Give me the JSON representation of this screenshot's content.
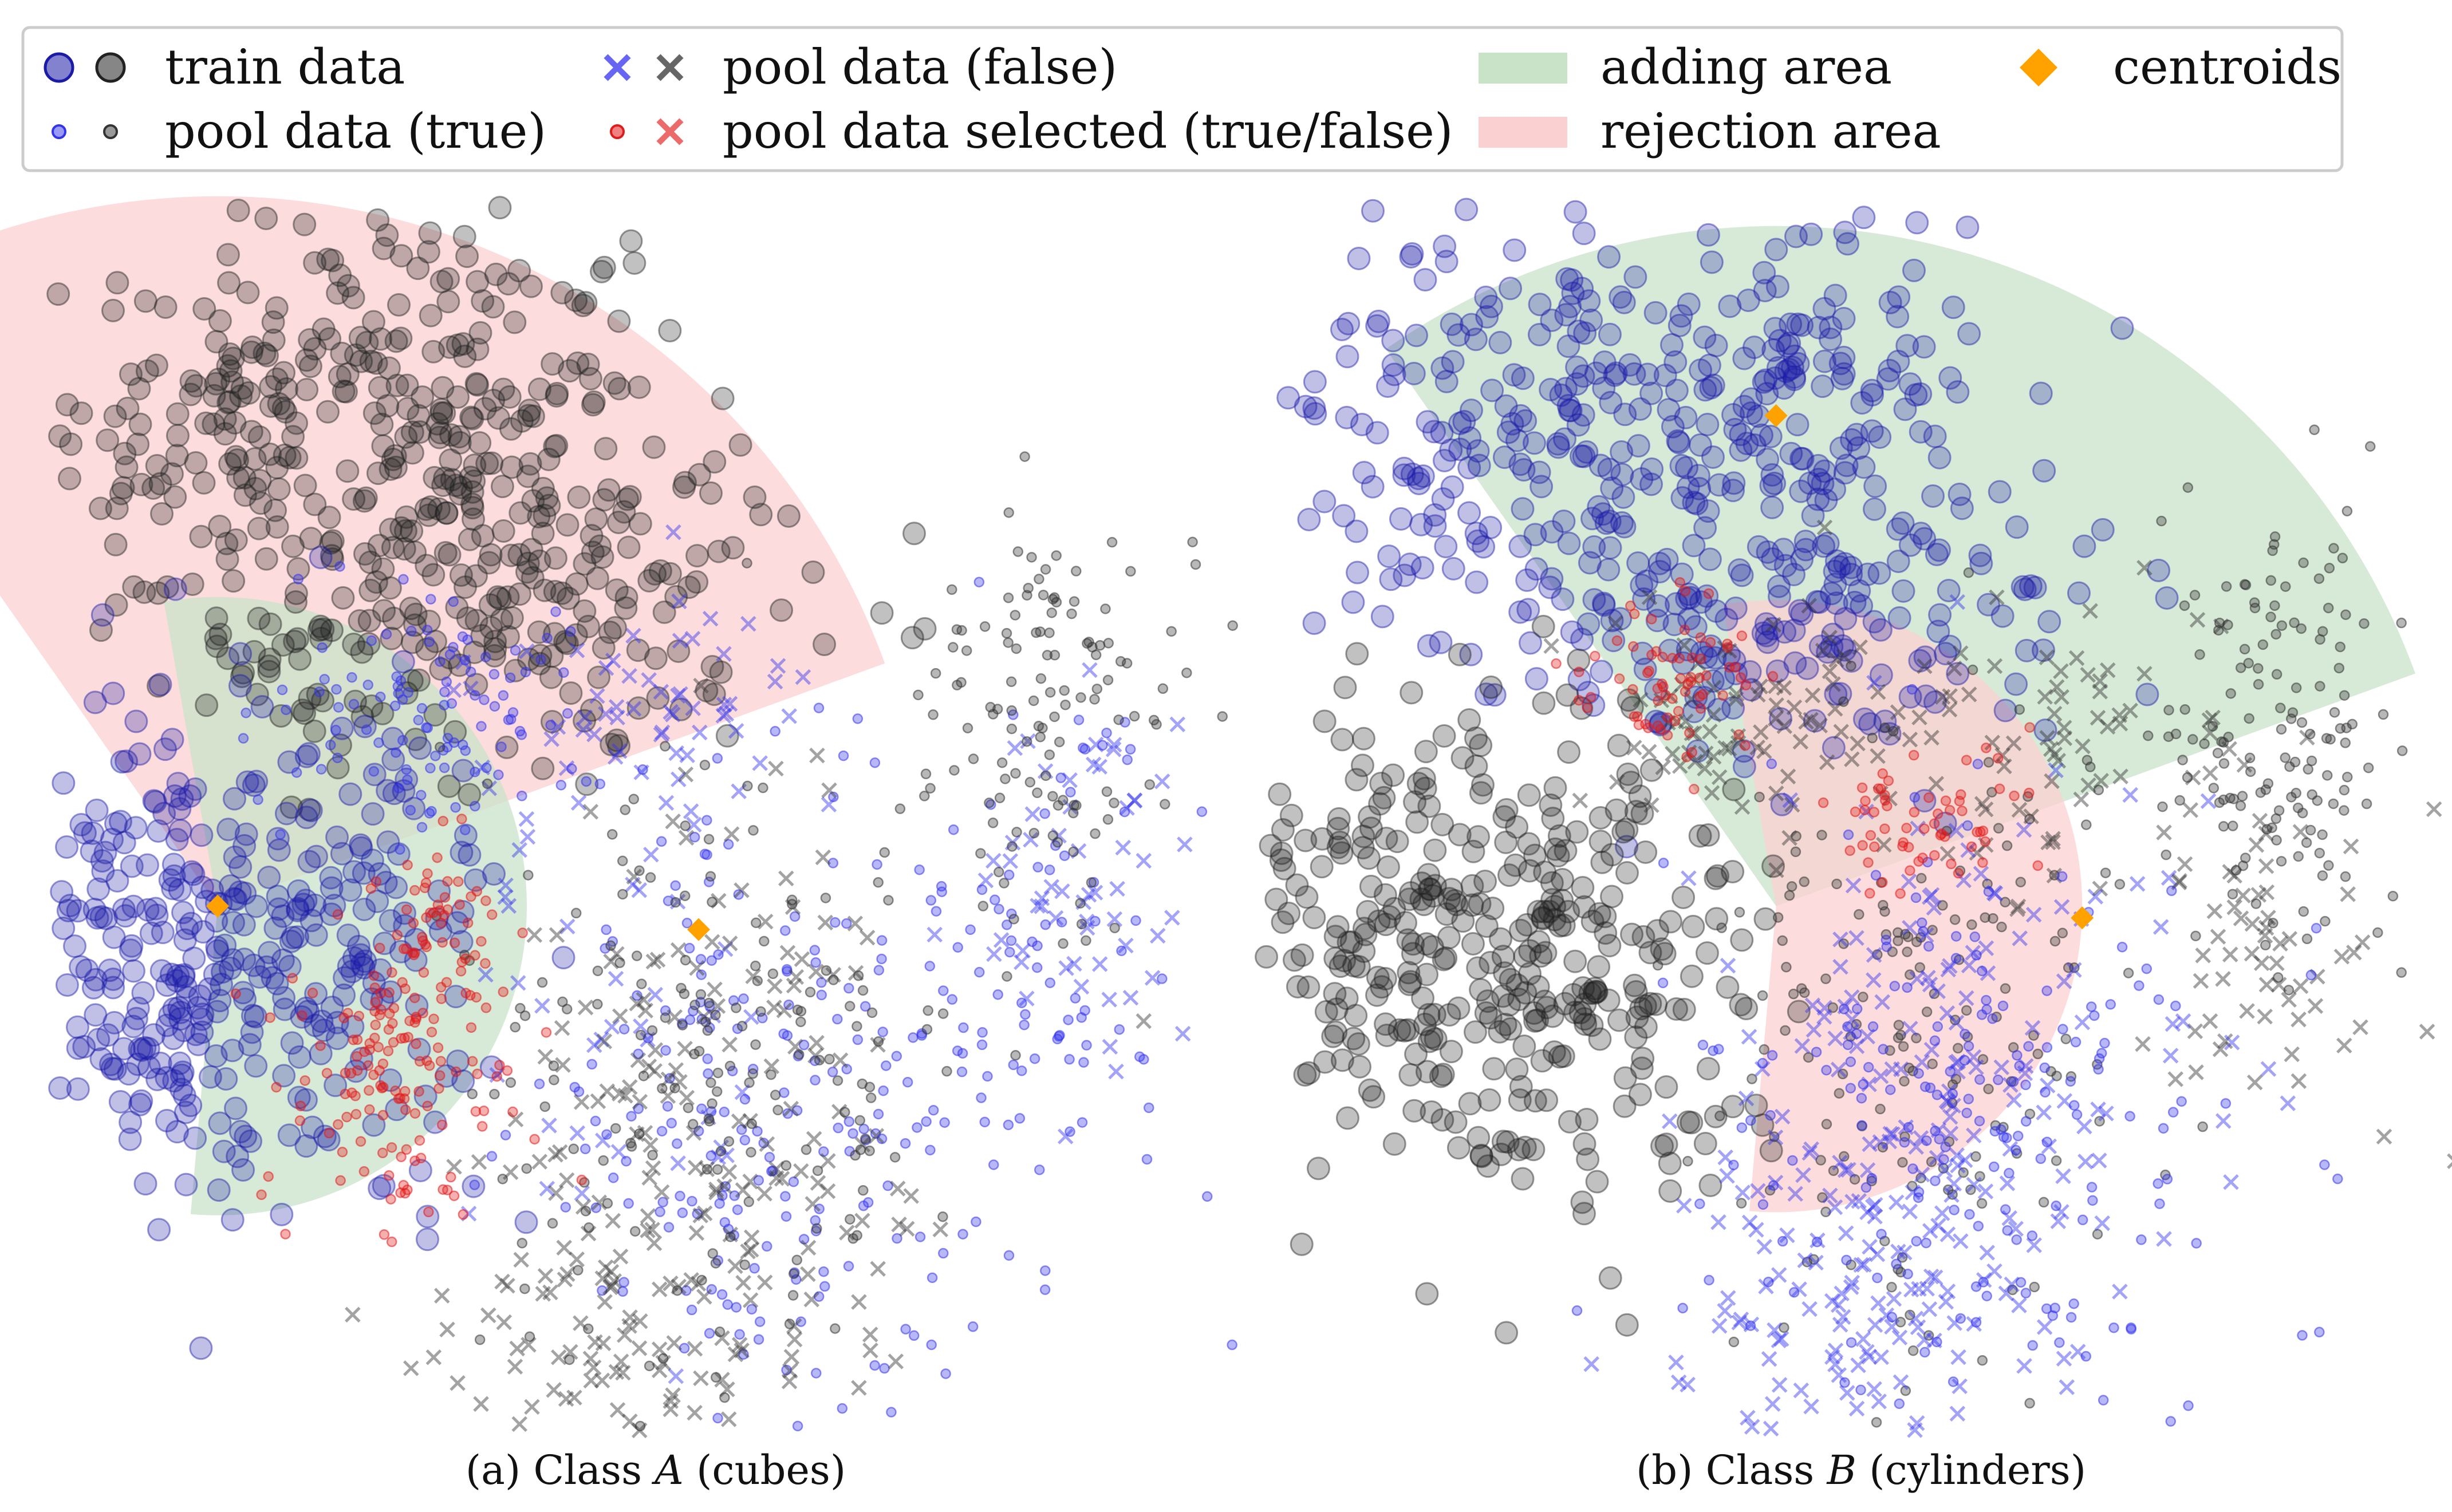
{
  "colors": {
    "train_blue": "#1b1ba8",
    "train_black": "#222222",
    "pool_blue": "#3333ee",
    "pool_black": "#333333",
    "selected_red": "#e11a1a",
    "adding_area": "#c9e3c9",
    "rejection_area": "#fbd0d0",
    "centroid": "#ffa200"
  },
  "legend": {
    "placement": "top",
    "items": [
      {
        "key": "train",
        "label": "train data",
        "icon": "large-circles-blue-black"
      },
      {
        "key": "pool_true",
        "label": "pool data (true)",
        "icon": "small-circles-blue-black"
      },
      {
        "key": "pool_false",
        "label": "pool data (false)",
        "icon": "crosses-blue-black"
      },
      {
        "key": "pool_selected",
        "label": "pool data selected (true/false)",
        "icon": "red-circle-and-cross"
      },
      {
        "key": "adding",
        "label": "adding area",
        "icon": "green-patch"
      },
      {
        "key": "rejection",
        "label": "rejection area",
        "icon": "red-patch"
      },
      {
        "key": "centroids",
        "label": "centroids",
        "icon": "orange-diamond"
      }
    ]
  },
  "captions": {
    "a_prefix": "(a) Class ",
    "a_class": "A",
    "a_suffix": " (cubes)",
    "b_prefix": "(b) Class ",
    "b_class": "B",
    "b_suffix": " (cylinders)"
  },
  "chart_data": [
    {
      "type": "scatter",
      "panel": "a",
      "title": "",
      "xlabel": "",
      "ylabel": "",
      "axes": "hidden",
      "grid": false,
      "target_class": "A",
      "target_color": "blue",
      "other_color": "black",
      "centroids": [
        {
          "x": 0.11,
          "y": 0.43
        },
        {
          "x": 0.53,
          "y": 0.41
        }
      ],
      "areas": [
        {
          "kind": "rejection",
          "center": {
            "x": 0.11,
            "y": 0.43
          },
          "radius": 0.62,
          "angle_from_deg": 20,
          "angle_to_deg": 125
        },
        {
          "kind": "adding",
          "center": {
            "x": 0.11,
            "y": 0.43
          },
          "radius": 0.27,
          "angle_from_deg": -95,
          "angle_to_deg": 100
        }
      ],
      "clusters": [
        {
          "group": "train_other",
          "cx": 0.14,
          "cy": 0.84,
          "sx": 0.1,
          "sy": 0.08,
          "n": 190
        },
        {
          "group": "train_other",
          "cx": 0.36,
          "cy": 0.86,
          "sx": 0.09,
          "sy": 0.08,
          "n": 150
        },
        {
          "group": "train_other",
          "cx": 0.34,
          "cy": 0.67,
          "sx": 0.14,
          "sy": 0.07,
          "n": 190
        },
        {
          "group": "train_target",
          "cx": 0.05,
          "cy": 0.4,
          "sx": 0.07,
          "sy": 0.1,
          "n": 190
        },
        {
          "group": "train_target",
          "cx": 0.2,
          "cy": 0.38,
          "sx": 0.08,
          "sy": 0.11,
          "n": 200
        },
        {
          "group": "pool_true",
          "cx": 0.3,
          "cy": 0.59,
          "sx": 0.07,
          "sy": 0.05,
          "n": 110
        },
        {
          "group": "pool_true",
          "cx": 0.6,
          "cy": 0.26,
          "sx": 0.11,
          "sy": 0.15,
          "n": 230
        },
        {
          "group": "pool_true",
          "cx": 0.84,
          "cy": 0.38,
          "sx": 0.06,
          "sy": 0.1,
          "n": 80
        },
        {
          "group": "pool_false_target",
          "cx": 0.48,
          "cy": 0.6,
          "sx": 0.07,
          "sy": 0.05,
          "n": 60
        },
        {
          "group": "pool_false_target",
          "cx": 0.87,
          "cy": 0.46,
          "sx": 0.05,
          "sy": 0.07,
          "n": 60
        },
        {
          "group": "pool_false_target",
          "cx": 0.45,
          "cy": 0.3,
          "sx": 0.08,
          "sy": 0.12,
          "n": 40
        },
        {
          "group": "pool_true_other",
          "cx": 0.84,
          "cy": 0.58,
          "sx": 0.06,
          "sy": 0.1,
          "n": 130
        },
        {
          "group": "pool_true_other",
          "cx": 0.54,
          "cy": 0.3,
          "sx": 0.1,
          "sy": 0.15,
          "n": 180
        },
        {
          "group": "pool_false_other",
          "cx": 0.54,
          "cy": 0.24,
          "sx": 0.1,
          "sy": 0.13,
          "n": 170
        },
        {
          "group": "pool_false_other",
          "cx": 0.44,
          "cy": 0.06,
          "sx": 0.07,
          "sy": 0.06,
          "n": 80
        },
        {
          "group": "selected_true",
          "cx": 0.27,
          "cy": 0.29,
          "sx": 0.05,
          "sy": 0.07,
          "n": 140
        },
        {
          "group": "selected_true",
          "cx": 0.3,
          "cy": 0.41,
          "sx": 0.03,
          "sy": 0.04,
          "n": 50
        }
      ]
    },
    {
      "type": "scatter",
      "panel": "b",
      "title": "",
      "xlabel": "",
      "ylabel": "",
      "axes": "hidden",
      "grid": false,
      "target_class": "B",
      "target_color": "black",
      "other_color": "blue",
      "centroids": [
        {
          "x": 0.42,
          "y": 0.85
        },
        {
          "x": 0.69,
          "y": 0.42
        }
      ],
      "areas": [
        {
          "kind": "adding",
          "center": {
            "x": 0.42,
            "y": 0.43
          },
          "radius": 0.6,
          "angle_from_deg": 20,
          "angle_to_deg": 125
        },
        {
          "kind": "rejection",
          "center": {
            "x": 0.42,
            "y": 0.43
          },
          "radius": 0.27,
          "angle_from_deg": -95,
          "angle_to_deg": 100
        }
      ],
      "clusters": [
        {
          "group": "train_other",
          "cx": 0.2,
          "cy": 0.84,
          "sx": 0.1,
          "sy": 0.08,
          "n": 190
        },
        {
          "group": "train_other",
          "cx": 0.43,
          "cy": 0.86,
          "sx": 0.09,
          "sy": 0.08,
          "n": 150
        },
        {
          "group": "train_other",
          "cx": 0.42,
          "cy": 0.67,
          "sx": 0.14,
          "sy": 0.07,
          "n": 190
        },
        {
          "group": "train_target",
          "cx": 0.08,
          "cy": 0.4,
          "sx": 0.07,
          "sy": 0.1,
          "n": 190
        },
        {
          "group": "train_target",
          "cx": 0.25,
          "cy": 0.38,
          "sx": 0.08,
          "sy": 0.11,
          "n": 200
        },
        {
          "group": "pool_true",
          "cx": 0.86,
          "cy": 0.58,
          "sx": 0.06,
          "sy": 0.1,
          "n": 150
        },
        {
          "group": "pool_true",
          "cx": 0.55,
          "cy": 0.32,
          "sx": 0.1,
          "sy": 0.15,
          "n": 180
        },
        {
          "group": "pool_false_target",
          "cx": 0.4,
          "cy": 0.59,
          "sx": 0.08,
          "sy": 0.05,
          "n": 90
        },
        {
          "group": "pool_false_target",
          "cx": 0.66,
          "cy": 0.58,
          "sx": 0.09,
          "sy": 0.06,
          "n": 70
        },
        {
          "group": "pool_false_target",
          "cx": 0.86,
          "cy": 0.4,
          "sx": 0.06,
          "sy": 0.07,
          "n": 60
        },
        {
          "group": "pool_true_other",
          "cx": 0.6,
          "cy": 0.25,
          "sx": 0.11,
          "sy": 0.14,
          "n": 200
        },
        {
          "group": "pool_false_other",
          "cx": 0.58,
          "cy": 0.24,
          "sx": 0.11,
          "sy": 0.14,
          "n": 220
        },
        {
          "group": "pool_false_other",
          "cx": 0.47,
          "cy": 0.06,
          "sx": 0.07,
          "sy": 0.06,
          "n": 70
        },
        {
          "group": "selected_true",
          "cx": 0.33,
          "cy": 0.62,
          "sx": 0.04,
          "sy": 0.04,
          "n": 70
        },
        {
          "group": "selected_true",
          "cx": 0.55,
          "cy": 0.5,
          "sx": 0.05,
          "sy": 0.03,
          "n": 60
        }
      ]
    }
  ]
}
